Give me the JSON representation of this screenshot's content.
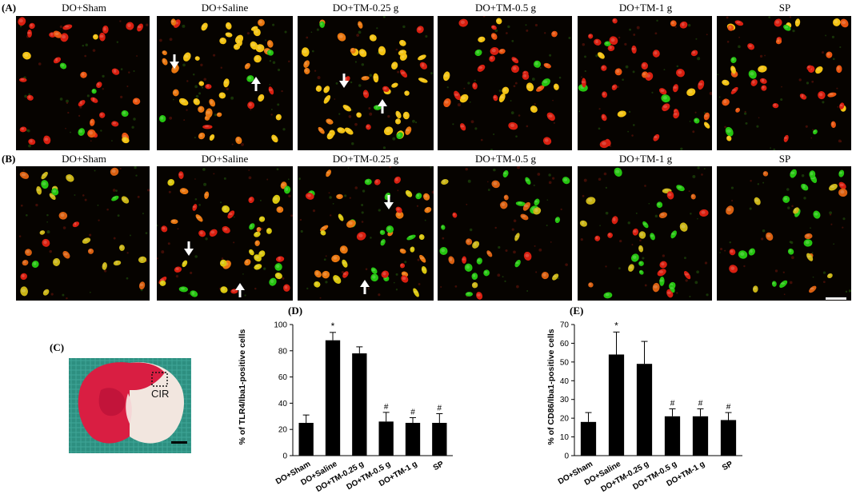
{
  "panel_letters": {
    "a": "(A)",
    "b": "(B)",
    "c": "(C)",
    "d": "(D)",
    "e": "(E)"
  },
  "groups": [
    "DO+Sham",
    "DO+Saline",
    "DO+TM-0.25 g",
    "DO+TM-0.5 g",
    "DO+TM-1 g",
    "SP"
  ],
  "brain": {
    "region_label": "CIR"
  },
  "colors": {
    "red": "#d81f10",
    "yellow": "#f2c212",
    "green": "#25c410",
    "bar": "#000000",
    "background": "#060300"
  },
  "chart_data": [
    {
      "type": "bar",
      "panel": "(D)",
      "title": "",
      "xlabel": "",
      "ylabel": "% of TLR4/Iba1-positive cells",
      "categories": [
        "DO+Sham",
        "DO+Saline",
        "DO+TM-0.25 g",
        "DO+TM-0.5 g",
        "DO+TM-1 g",
        "SP"
      ],
      "values": [
        25,
        88,
        78,
        26,
        25,
        25
      ],
      "errors": [
        6,
        6,
        5,
        7,
        4,
        7
      ],
      "annotations": [
        "",
        "*",
        "",
        "#",
        "#",
        "#"
      ],
      "ylim": [
        0,
        100
      ],
      "yticks": [
        0,
        20,
        40,
        60,
        80,
        100
      ]
    },
    {
      "type": "bar",
      "panel": "(E)",
      "title": "",
      "xlabel": "",
      "ylabel": "% of CD86/Iba1-positive cells",
      "categories": [
        "DO+Sham",
        "DO+Saline",
        "DO+TM-0.25 g",
        "DO+TM-0.5 g",
        "DO+TM-1 g",
        "SP"
      ],
      "values": [
        18,
        54,
        49,
        21,
        21,
        19
      ],
      "errors": [
        5,
        12,
        12,
        4,
        4,
        4
      ],
      "annotations": [
        "",
        "*",
        "",
        "#",
        "#",
        "#"
      ],
      "ylim": [
        0,
        70
      ],
      "yticks": [
        0,
        10,
        20,
        30,
        40,
        50,
        60,
        70
      ]
    }
  ]
}
